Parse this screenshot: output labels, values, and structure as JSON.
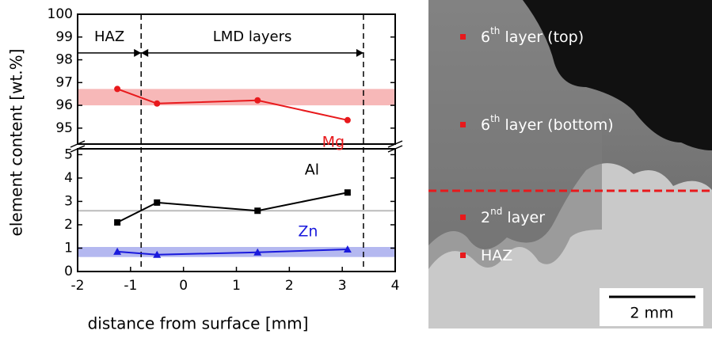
{
  "chart_data": {
    "type": "line",
    "x_label": "distance from surface [mm]",
    "y_label": "element content [wt.%]",
    "xlim": [
      -2,
      4
    ],
    "xticks": [
      -2,
      -1,
      0,
      1,
      2,
      3,
      4
    ],
    "panels": [
      {
        "ylim": [
          94.3,
          100
        ],
        "yticks": [
          95,
          96,
          97,
          98,
          99,
          100
        ]
      },
      {
        "ylim": [
          0,
          5.25
        ],
        "yticks": [
          0,
          1,
          2,
          3,
          4,
          5
        ]
      }
    ],
    "series": [
      {
        "name": "Mg",
        "color": "#e8191c",
        "marker": "circle",
        "panel": 0,
        "x": [
          -1.25,
          -0.5,
          1.4,
          3.1
        ],
        "values": [
          96.72,
          96.08,
          96.22,
          95.35
        ]
      },
      {
        "name": "Al",
        "color": "#000000",
        "marker": "square",
        "panel": 1,
        "x": [
          -1.25,
          -0.5,
          1.4,
          3.1
        ],
        "values": [
          2.1,
          2.95,
          2.6,
          3.38
        ]
      },
      {
        "name": "Zn",
        "color": "#1a1adc",
        "marker": "triangle",
        "panel": 1,
        "x": [
          -1.25,
          -0.5,
          1.4,
          3.1
        ],
        "values": [
          0.85,
          0.72,
          0.82,
          0.95
        ]
      }
    ],
    "bands": [
      {
        "panel": 0,
        "range": [
          96.0,
          96.72
        ],
        "color": "#f7b8b8"
      },
      {
        "panel": 1,
        "range": [
          0.62,
          1.05
        ],
        "color": "#b4b8f0"
      }
    ],
    "hlines": [
      {
        "panel": 1,
        "value": 2.6,
        "color": "#bbbbbb"
      }
    ],
    "vlines": [
      -0.8,
      3.4
    ],
    "regions": [
      {
        "label": "HAZ",
        "range": [
          -2,
          -0.8
        ]
      },
      {
        "label": "LMD layers",
        "range": [
          -0.8,
          3.4
        ]
      }
    ],
    "arrow_y": 98.3
  },
  "micrograph": {
    "labels": [
      {
        "base": "6",
        "sup": "th",
        "rest": " layer (top)"
      },
      {
        "base": "6",
        "sup": "th",
        "rest": " layer (bottom)"
      },
      {
        "base": "2",
        "sup": "nd",
        "rest": " layer"
      },
      {
        "base": "HAZ",
        "sup": "",
        "rest": ""
      }
    ],
    "scale_bar": "2 mm"
  }
}
